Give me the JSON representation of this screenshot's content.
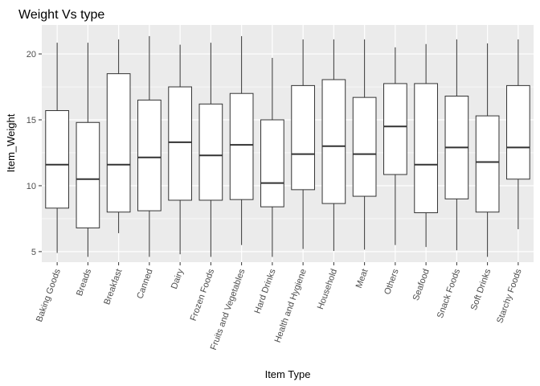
{
  "chart_data": {
    "type": "boxplot",
    "title": "Weight Vs type",
    "xlabel": "Item Type",
    "ylabel": "Item_Weight",
    "ylim": [
      4.2,
      22.2
    ],
    "yticks": [
      5,
      10,
      15,
      20
    ],
    "grid": true,
    "panel_background": "#ebebeb",
    "grid_color": "#ffffff",
    "box_fill": "#ffffff",
    "line_color": "#333333",
    "categories": [
      "Baking Goods",
      "Breads",
      "Breakfast",
      "Canned",
      "Dairy",
      "Frozen Foods",
      "Fruits and Vegetables",
      "Hard Drinks",
      "Health and Hygiene",
      "Household",
      "Meat",
      "Others",
      "Seafood",
      "Snack Foods",
      "Soft Drinks",
      "Starchy Foods"
    ],
    "boxes": [
      {
        "min": 4.9,
        "q1": 8.3,
        "median": 11.6,
        "q3": 15.7,
        "max": 20.85
      },
      {
        "min": 4.6,
        "q1": 6.8,
        "median": 10.5,
        "q3": 14.8,
        "max": 20.85
      },
      {
        "min": 6.4,
        "q1": 8.0,
        "median": 11.6,
        "q3": 18.5,
        "max": 21.1
      },
      {
        "min": 4.6,
        "q1": 8.1,
        "median": 12.15,
        "q3": 16.5,
        "max": 21.35
      },
      {
        "min": 4.8,
        "q1": 8.9,
        "median": 13.3,
        "q3": 17.5,
        "max": 20.7
      },
      {
        "min": 4.6,
        "q1": 8.9,
        "median": 12.3,
        "q3": 16.2,
        "max": 20.85
      },
      {
        "min": 5.5,
        "q1": 8.95,
        "median": 13.1,
        "q3": 17.0,
        "max": 21.35
      },
      {
        "min": 4.6,
        "q1": 8.4,
        "median": 10.2,
        "q3": 15.0,
        "max": 19.7
      },
      {
        "min": 5.2,
        "q1": 9.7,
        "median": 12.4,
        "q3": 17.6,
        "max": 21.1
      },
      {
        "min": 5.05,
        "q1": 8.65,
        "median": 13.0,
        "q3": 18.05,
        "max": 21.1
      },
      {
        "min": 5.15,
        "q1": 9.2,
        "median": 12.4,
        "q3": 16.7,
        "max": 21.1
      },
      {
        "min": 5.5,
        "q1": 10.85,
        "median": 14.5,
        "q3": 17.75,
        "max": 20.5
      },
      {
        "min": 5.35,
        "q1": 7.95,
        "median": 11.6,
        "q3": 17.75,
        "max": 20.75
      },
      {
        "min": 5.1,
        "q1": 9.0,
        "median": 12.9,
        "q3": 16.8,
        "max": 21.1
      },
      {
        "min": 4.6,
        "q1": 8.0,
        "median": 11.8,
        "q3": 15.3,
        "max": 20.8
      },
      {
        "min": 6.7,
        "q1": 10.5,
        "median": 12.9,
        "q3": 17.6,
        "max": 21.1
      }
    ]
  }
}
